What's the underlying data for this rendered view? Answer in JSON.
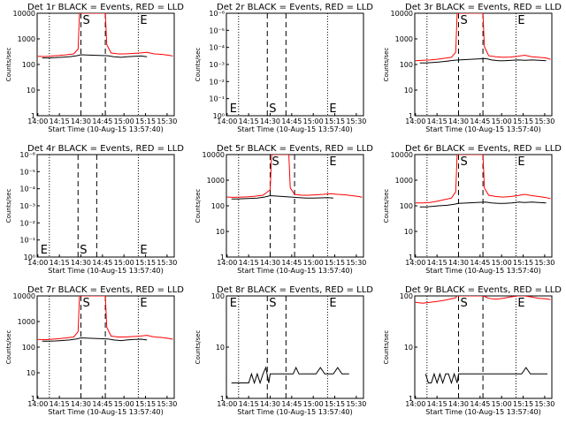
{
  "chart_data": [
    {
      "type": "line",
      "title": "Det 1r BLACK = Events, RED = LLD",
      "xlabel": "Start Time (10-Aug-15 13:57:40)",
      "ylabel": "Counts/sec",
      "x_ticks": [
        "14:00",
        "14:15",
        "14:30",
        "14:45",
        "15:00",
        "15:15",
        "15:30"
      ],
      "y_ticks": [
        "1",
        "10",
        "100",
        "1000",
        "10000"
      ],
      "scale": "log",
      "ylim": [
        1,
        10000
      ],
      "markers": [
        "S",
        "E"
      ],
      "series": [
        {
          "color": "#000000",
          "x": [
            "14:03",
            "14:07",
            "14:12",
            "14:16",
            "14:22",
            "14:27",
            "14:30",
            "14:49",
            "14:53",
            "14:58",
            "15:02",
            "15:07",
            "15:12",
            "15:16"
          ],
          "values": [
            180,
            180,
            185,
            190,
            200,
            220,
            240,
            220,
            200,
            190,
            200,
            210,
            215,
            200
          ]
        },
        {
          "color": "#ff0000",
          "x": [
            "14:00",
            "14:05",
            "14:10",
            "14:15",
            "14:20",
            "14:25",
            "14:28",
            "14:29",
            "14:47",
            "14:48",
            "14:51",
            "14:56",
            "15:01",
            "15:06",
            "15:11",
            "15:16",
            "15:21",
            "15:26",
            "15:31",
            "15:34"
          ],
          "values": [
            210,
            205,
            215,
            225,
            240,
            260,
            400,
            10000,
            10000,
            600,
            280,
            260,
            260,
            270,
            280,
            300,
            260,
            250,
            230,
            215
          ]
        }
      ]
    },
    {
      "type": "line",
      "title": "Det 2r BLACK = Events, RED = LLD",
      "xlabel": "Start Time (10-Aug-15 13:57:40)",
      "ylabel": "Counts/sec",
      "x_ticks": [
        "14:00",
        "14:15",
        "14:30",
        "14:45",
        "15:00",
        "15:15",
        "15:30"
      ],
      "y_ticks": [
        "10⁰",
        "10⁻¹",
        "10⁻²",
        "10⁻³",
        "10⁻⁴",
        "10⁻⁵",
        "10⁻⁶"
      ],
      "markers": [
        "E",
        "S",
        "E"
      ],
      "series": []
    },
    {
      "type": "line",
      "title": "Det 3r BLACK = Events, RED = LLD",
      "xlabel": "Start Time (10-Aug-15 13:57:40)",
      "ylabel": "Counts/sec",
      "x_ticks": [
        "14:00",
        "14:15",
        "14:30",
        "14:45",
        "15:00",
        "15:15",
        "15:30"
      ],
      "y_ticks": [
        "1",
        "10",
        "100",
        "1000",
        "10000"
      ],
      "scale": "log",
      "ylim": [
        1,
        10000
      ],
      "markers": [
        "S",
        "E"
      ],
      "series": [
        {
          "color": "#000000",
          "x": [
            "14:03",
            "14:07",
            "14:12",
            "14:16",
            "14:22",
            "14:27",
            "14:30",
            "14:49",
            "14:53",
            "14:58",
            "15:02",
            "15:07",
            "15:12",
            "15:16",
            "15:21",
            "15:26",
            "15:31"
          ],
          "values": [
            115,
            115,
            120,
            125,
            135,
            145,
            150,
            170,
            150,
            140,
            140,
            145,
            150,
            145,
            150,
            145,
            140
          ]
        },
        {
          "color": "#ff0000",
          "x": [
            "14:00",
            "14:05",
            "14:10",
            "14:15",
            "14:20",
            "14:25",
            "14:28",
            "14:29",
            "14:47",
            "14:48",
            "14:51",
            "14:56",
            "15:01",
            "15:06",
            "15:11",
            "15:16",
            "15:21",
            "15:26",
            "15:31",
            "15:34"
          ],
          "values": [
            140,
            145,
            150,
            160,
            175,
            190,
            300,
            10000,
            10000,
            500,
            220,
            200,
            190,
            195,
            210,
            230,
            200,
            190,
            180,
            160
          ]
        }
      ]
    },
    {
      "type": "line",
      "title": "Det 4r BLACK = Events, RED = LLD",
      "xlabel": "Start Time (10-Aug-15 13:57:40)",
      "ylabel": "Counts/sec",
      "x_ticks": [
        "14:00",
        "14:15",
        "14:30",
        "14:45",
        "15:00",
        "15:15",
        "15:30"
      ],
      "y_ticks": [
        "10⁰",
        "10⁻¹",
        "10⁻²",
        "10⁻³",
        "10⁻⁴",
        "10⁻⁵",
        "10⁻⁶"
      ],
      "markers": [
        "E",
        "S",
        "E"
      ],
      "series": []
    },
    {
      "type": "line",
      "title": "Det 5r BLACK = Events, RED = LLD",
      "xlabel": "Start Time (10-Aug-15 13:57:40)",
      "ylabel": "Counts/sec",
      "x_ticks": [
        "14:00",
        "14:15",
        "14:30",
        "14:45",
        "15:00",
        "15:15",
        "15:30"
      ],
      "y_ticks": [
        "1",
        "10",
        "100",
        "1000",
        "10000"
      ],
      "scale": "log",
      "ylim": [
        1,
        10000
      ],
      "markers": [
        "S",
        "E"
      ],
      "series": [
        {
          "color": "#000000",
          "x": [
            "14:03",
            "14:07",
            "14:12",
            "14:16",
            "14:21",
            "14:26",
            "14:30",
            "14:45",
            "14:50",
            "14:55",
            "15:00",
            "15:05",
            "15:10",
            "15:14"
          ],
          "values": [
            185,
            185,
            190,
            195,
            200,
            220,
            250,
            220,
            210,
            200,
            200,
            205,
            210,
            200
          ]
        },
        {
          "color": "#ff0000",
          "x": [
            "14:00",
            "14:05",
            "14:10",
            "14:15",
            "14:20",
            "14:25",
            "14:30",
            "14:31",
            "14:43",
            "14:44",
            "14:47",
            "14:52",
            "14:57",
            "15:02",
            "15:07",
            "15:12",
            "15:17",
            "15:22",
            "15:27",
            "15:32",
            "15:34"
          ],
          "values": [
            220,
            215,
            220,
            225,
            240,
            260,
            420,
            10000,
            10000,
            500,
            280,
            260,
            260,
            270,
            280,
            300,
            280,
            270,
            250,
            230,
            215
          ]
        }
      ]
    },
    {
      "type": "line",
      "title": "Det 6r BLACK = Events, RED = LLD",
      "xlabel": "Start Time (10-Aug-15 13:57:40)",
      "ylabel": "Counts/sec",
      "x_ticks": [
        "14:00",
        "14:15",
        "14:30",
        "14:45",
        "15:00",
        "15:15",
        "15:30"
      ],
      "y_ticks": [
        "1",
        "10",
        "100",
        "1000",
        "10000"
      ],
      "scale": "log",
      "ylim": [
        1,
        10000
      ],
      "markers": [
        "S",
        "E"
      ],
      "series": [
        {
          "color": "#000000",
          "x": [
            "14:03",
            "14:07",
            "14:12",
            "14:16",
            "14:22",
            "14:27",
            "14:30",
            "14:49",
            "14:53",
            "14:58",
            "15:02",
            "15:07",
            "15:12",
            "15:16",
            "15:21",
            "15:26",
            "15:31"
          ],
          "values": [
            90,
            90,
            95,
            100,
            105,
            115,
            125,
            140,
            130,
            125,
            125,
            130,
            140,
            135,
            140,
            135,
            130
          ]
        },
        {
          "color": "#ff0000",
          "x": [
            "14:00",
            "14:05",
            "14:10",
            "14:15",
            "14:20",
            "14:25",
            "14:28",
            "14:29",
            "14:47",
            "14:48",
            "14:51",
            "14:56",
            "15:01",
            "15:06",
            "15:11",
            "15:16",
            "15:21",
            "15:26",
            "15:31",
            "15:34"
          ],
          "values": [
            130,
            130,
            135,
            150,
            175,
            200,
            350,
            10000,
            10000,
            500,
            260,
            230,
            220,
            230,
            250,
            280,
            250,
            230,
            210,
            190
          ]
        }
      ]
    },
    {
      "type": "line",
      "title": "Det 7r BLACK = Events, RED = LLD",
      "xlabel": "Start Time (10-Aug-15 13:57:40)",
      "ylabel": "Counts/sec",
      "x_ticks": [
        "14:00",
        "14:15",
        "14:30",
        "14:45",
        "15:00",
        "15:15",
        "15:30"
      ],
      "y_ticks": [
        "1",
        "10",
        "100",
        "1000",
        "10000"
      ],
      "scale": "log",
      "ylim": [
        1,
        10000
      ],
      "markers": [
        "S",
        "E"
      ],
      "series": [
        {
          "color": "#000000",
          "x": [
            "14:03",
            "14:07",
            "14:12",
            "14:16",
            "14:22",
            "14:27",
            "14:30",
            "14:49",
            "14:53",
            "14:58",
            "15:02",
            "15:07",
            "15:12",
            "15:16"
          ],
          "values": [
            170,
            170,
            175,
            180,
            190,
            210,
            230,
            210,
            190,
            180,
            190,
            200,
            205,
            190
          ]
        },
        {
          "color": "#ff0000",
          "x": [
            "14:00",
            "14:05",
            "14:10",
            "14:15",
            "14:20",
            "14:25",
            "14:28",
            "14:29",
            "14:47",
            "14:48",
            "14:51",
            "14:56",
            "15:01",
            "15:06",
            "15:11",
            "15:16",
            "15:21",
            "15:26",
            "15:31",
            "15:34"
          ],
          "values": [
            200,
            195,
            205,
            215,
            230,
            250,
            400,
            10000,
            10000,
            600,
            270,
            250,
            250,
            260,
            270,
            290,
            250,
            240,
            220,
            205
          ]
        }
      ]
    },
    {
      "type": "line",
      "title": "Det 8r BLACK = Events, RED = LLD",
      "xlabel": "Start Time (10-Aug-15 13:57:40)",
      "ylabel": "Counts/sec",
      "x_ticks": [
        "14:00",
        "14:15",
        "14:30",
        "14:45",
        "15:00",
        "15:15",
        "15:30"
      ],
      "y_ticks": [
        "1",
        "10",
        "100"
      ],
      "scale": "log",
      "ylim": [
        1,
        100
      ],
      "markers": [
        "E",
        "S",
        "E"
      ],
      "series": [
        {
          "color": "#000000",
          "x": [
            "14:03",
            "14:06",
            "14:09",
            "14:12",
            "14:15",
            "14:17",
            "14:19",
            "14:21",
            "14:23",
            "14:25",
            "14:27",
            "14:29",
            "14:30",
            "14:46",
            "14:48",
            "14:50",
            "14:53",
            "14:56",
            "14:59",
            "15:02",
            "15:05",
            "15:08",
            "15:11",
            "15:14",
            "15:17",
            "15:20",
            "15:23",
            "15:25"
          ],
          "values": [
            2,
            2,
            2,
            2,
            2,
            3,
            2,
            3,
            2,
            3,
            4,
            2,
            3,
            3,
            4,
            3,
            3,
            3,
            3,
            3,
            4,
            3,
            3,
            3,
            4,
            3,
            3,
            3
          ]
        }
      ]
    },
    {
      "type": "line",
      "title": "Det 9r BLACK = Events, RED = LLD",
      "xlabel": "Start Time (10-Aug-15 13:57:40)",
      "ylabel": "Counts/sec",
      "x_ticks": [
        "14:00",
        "14:15",
        "14:30",
        "14:45",
        "15:00",
        "15:15",
        "15:30"
      ],
      "y_ticks": [
        "1",
        "10",
        "100"
      ],
      "scale": "log",
      "ylim": [
        1,
        100
      ],
      "markers": [
        "S",
        "E"
      ],
      "series": [
        {
          "color": "#000000",
          "x": [
            "14:07",
            "14:09",
            "14:11",
            "14:13",
            "14:15",
            "14:17",
            "14:19",
            "14:21",
            "14:23",
            "14:25",
            "14:27",
            "14:29",
            "14:30",
            "14:46",
            "14:48",
            "14:50",
            "14:53",
            "14:56",
            "14:59",
            "15:02",
            "15:05",
            "15:08",
            "15:11",
            "15:14",
            "15:17",
            "15:20",
            "15:23",
            "15:26",
            "15:29",
            "15:32"
          ],
          "values": [
            3,
            2,
            2,
            3,
            2,
            3,
            2,
            3,
            3,
            2,
            3,
            2,
            3,
            3,
            3,
            3,
            3,
            3,
            3,
            3,
            3,
            3,
            3,
            3,
            4,
            3,
            3,
            3,
            3,
            3
          ]
        },
        {
          "color": "#ff0000",
          "x": [
            "14:00",
            "14:05",
            "14:10",
            "14:15",
            "14:20",
            "14:25",
            "14:28",
            "14:29",
            "14:47",
            "14:48",
            "14:51",
            "14:56",
            "15:01",
            "15:06",
            "15:11",
            "15:16",
            "15:21",
            "15:26",
            "15:31",
            "15:34"
          ],
          "values": [
            75,
            72,
            75,
            78,
            82,
            88,
            92,
            100,
            100,
            98,
            90,
            86,
            90,
            95,
            100,
            100,
            95,
            90,
            88,
            85
          ]
        }
      ]
    }
  ]
}
